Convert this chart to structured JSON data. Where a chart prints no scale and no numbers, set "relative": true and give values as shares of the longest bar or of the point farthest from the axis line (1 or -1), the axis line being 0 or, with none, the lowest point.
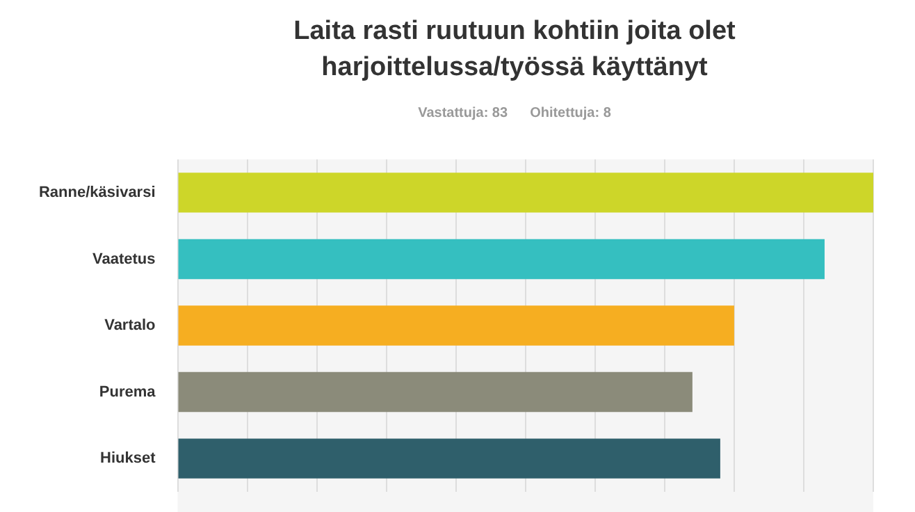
{
  "chart_data": {
    "type": "bar",
    "orientation": "horizontal",
    "relative": true,
    "grid": "x",
    "title": "Laita rasti ruutuun kohtiin joita olet harjoittelussa/työssä käyttänyt",
    "annotations": [
      "Vastattuja: 83",
      "Ohitettuja: 8"
    ],
    "categories": [
      "Ranne/käsivarsi",
      "Vaatetus",
      "Vartalo",
      "Purema",
      "Hiukset"
    ],
    "values": [
      1,
      0.93,
      0.8,
      0.74,
      0.78
    ],
    "colors": [
      "#cdd629",
      "#35bfc0",
      "#f6ae21",
      "#8b8b7a",
      "#2f5f6b"
    ]
  }
}
